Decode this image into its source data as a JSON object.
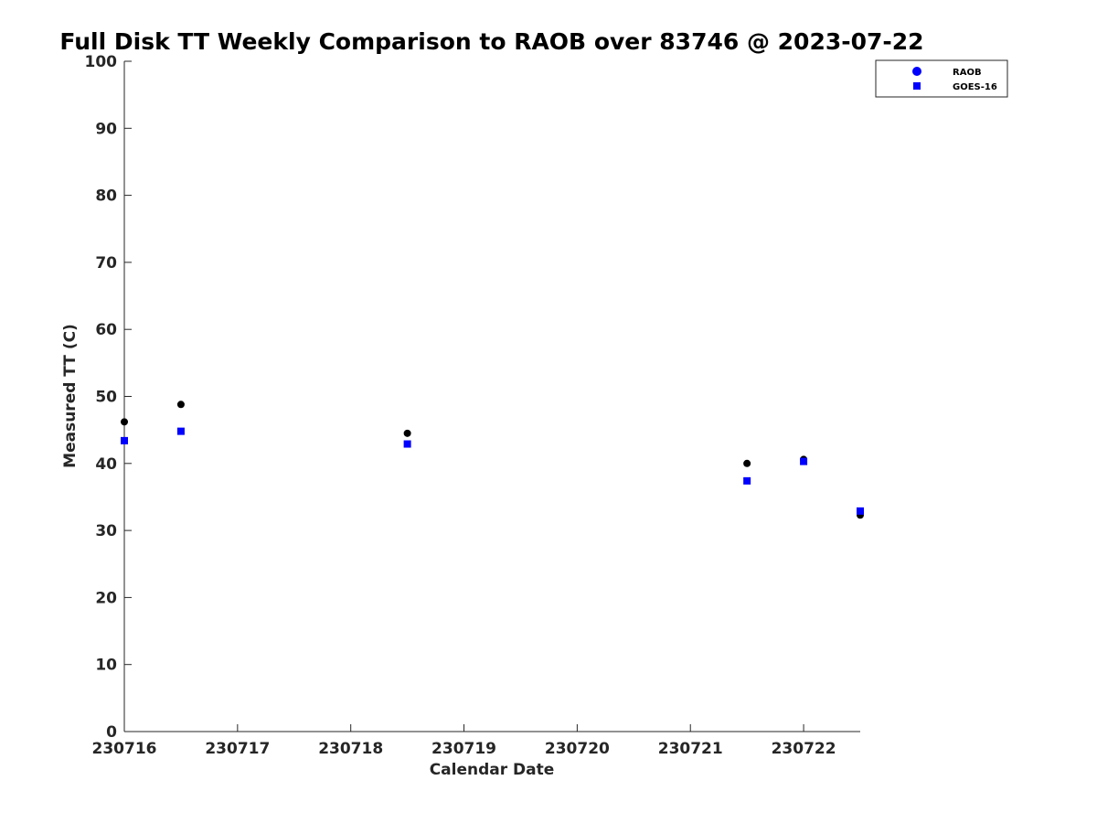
{
  "chart_data": {
    "type": "scatter",
    "title": "Full Disk TT Weekly Comparison to RAOB over 83746 @ 2023-07-22",
    "xlabel": "Calendar Date",
    "ylabel": "Measured TT (C)",
    "xlim": [
      "2023-07-16",
      "2023-07-22T12:00"
    ],
    "ylim": [
      0,
      100
    ],
    "x_ticks": [
      {
        "x": "2023-07-16",
        "label": "230716"
      },
      {
        "x": "2023-07-17",
        "label": "230717"
      },
      {
        "x": "2023-07-18",
        "label": "230718"
      },
      {
        "x": "2023-07-19",
        "label": "230719"
      },
      {
        "x": "2023-07-20",
        "label": "230720"
      },
      {
        "x": "2023-07-21",
        "label": "230721"
      },
      {
        "x": "2023-07-22",
        "label": "230722"
      }
    ],
    "y_ticks": [
      0,
      10,
      20,
      30,
      40,
      50,
      60,
      70,
      80,
      90,
      100
    ],
    "grid": false,
    "legend_position": "top-right",
    "series": [
      {
        "name": "RAOB",
        "marker": "circle",
        "color": "#000000",
        "legend_color": "#0000ff",
        "points": [
          {
            "x": "2023-07-16T00:00",
            "y": 46.2
          },
          {
            "x": "2023-07-16T12:00",
            "y": 48.8
          },
          {
            "x": "2023-07-18T12:00",
            "y": 44.5
          },
          {
            "x": "2023-07-21T12:00",
            "y": 40.0
          },
          {
            "x": "2023-07-22T00:00",
            "y": 40.6
          },
          {
            "x": "2023-07-22T12:00",
            "y": 32.3
          }
        ]
      },
      {
        "name": "GOES-16",
        "marker": "square",
        "color": "#0000ff",
        "legend_color": "#0000ff",
        "points": [
          {
            "x": "2023-07-16T00:00",
            "y": 43.4
          },
          {
            "x": "2023-07-16T12:00",
            "y": 44.8
          },
          {
            "x": "2023-07-18T12:00",
            "y": 42.9
          },
          {
            "x": "2023-07-21T12:00",
            "y": 37.4
          },
          {
            "x": "2023-07-22T00:00",
            "y": 40.3
          },
          {
            "x": "2023-07-22T12:00",
            "y": 32.9
          }
        ]
      }
    ]
  }
}
